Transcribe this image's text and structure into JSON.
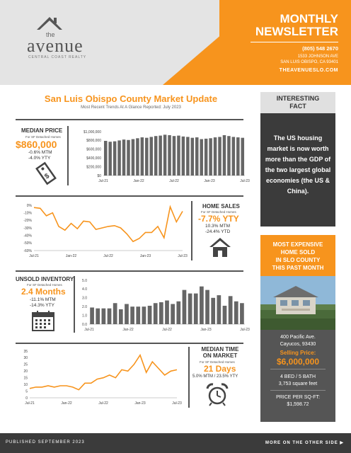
{
  "header": {
    "logo_the": "the",
    "logo_main": "avenue",
    "logo_sub": "CENTRAL COAST REALTY",
    "title_line1": "MONTHLY",
    "title_line2": "NEWSLETTER",
    "phone": "(805) 548 2670",
    "address_line1": "1533 JOHNSON AVE",
    "address_line2": "SAN LUIS OBISPO, CA 93401",
    "website": "THEAVENUESLO.COM"
  },
  "main": {
    "title": "San Luis Obispo County Market Update",
    "subtitle": "Most Recent Trends At A Glance Reported: July 2023"
  },
  "median_price": {
    "title": "MEDIAN PRICE",
    "sub": "For SF Detached Homes",
    "value": "$860,000",
    "mtm": "-0.6% MTM",
    "ytd": "-4.0% YTY"
  },
  "home_sales": {
    "title": "HOME SALES",
    "sub": "For SF Detached Homes",
    "value": "-7.7% YTY",
    "mtm": "10.3% MTM",
    "ytd": "-24.4% YTD"
  },
  "unsold": {
    "title": "UNSOLD INVENTORY",
    "sub": "For SF Detached Homes",
    "value": "2.4 Months",
    "mtm": "-11.1% MTM",
    "ytd": "-14.3% YTY"
  },
  "median_time": {
    "title_line1": "MEDIAN TIME",
    "title_line2": "ON MARKET",
    "sub": "For SF Detached Homes",
    "value": "21 Days",
    "change": "5.0% MTM / 23.5% YTY"
  },
  "fact": {
    "heading_line1": "INTERESTING",
    "heading_line2": "FACT",
    "text": "The US housing market is now worth more than the GDP of the two largest global economies (the US & China)."
  },
  "expensive": {
    "heading_line1": "MOST EXPENSIVE",
    "heading_line2": "HOME SOLD",
    "heading_line3": "IN SLO COUNTY",
    "heading_line4": "THIS PAST MONTH",
    "address_line1": "400 Pacific Ave.",
    "address_line2": "Cayucos, 93430",
    "selling_label": "Selling Price:",
    "selling_value": "$6,000,000",
    "bed_bath": "4 BED / 5 BATH",
    "sqft": "3,753 square feet",
    "ppsf_label": "PRICE PER SQ-FT:",
    "ppsf_value": "$1,598.72"
  },
  "footer": {
    "published": "PUBLISHED SEPTEMBER 2023",
    "more": "MORE ON THE OTHER SIDE ▶"
  },
  "colors": {
    "accent": "#f7941d",
    "dark": "#3b3b3b",
    "bar": "#666666"
  },
  "chart_data": [
    {
      "type": "bar",
      "name": "median-price",
      "x_ticks": [
        "Jul-21",
        "Jan-22",
        "Jul-22",
        "Jan-23",
        "Jul-23"
      ],
      "y_ticks": [
        "$0",
        "$200,000",
        "$400,000",
        "$600,000",
        "$800,000",
        "$1,000,000"
      ],
      "ylim": [
        0,
        1000000
      ],
      "values": [
        790000,
        770000,
        780000,
        800000,
        820000,
        810000,
        830000,
        850000,
        870000,
        860000,
        880000,
        900000,
        910000,
        930000,
        920000,
        900000,
        910000,
        890000,
        880000,
        860000,
        870000,
        830000,
        840000,
        850000,
        870000,
        880000,
        920000,
        900000,
        880000,
        870000,
        860000
      ]
    },
    {
      "type": "line",
      "name": "home-sales",
      "x_ticks": [
        "Jul-21",
        "Jan-22",
        "Jul-22",
        "Jan-23",
        "Jul-23"
      ],
      "y_ticks": [
        "0%",
        "-10%",
        "-20%",
        "-30%",
        "-40%",
        "-50%",
        "-60%"
      ],
      "ylim": [
        -60,
        0
      ],
      "values": [
        -3,
        -4,
        -14,
        -10,
        -28,
        -33,
        -24,
        -31,
        -21,
        -22,
        -32,
        -30,
        -28,
        -27,
        -30,
        -38,
        -48,
        -44,
        -36,
        -36,
        -28,
        -43,
        -2,
        -22,
        -8
      ]
    },
    {
      "type": "bar",
      "name": "unsold-inventory",
      "x_ticks": [
        "Jul-21",
        "Jan-22",
        "Jul-22",
        "Jan-23",
        "Jul-23"
      ],
      "y_ticks": [
        "0.0",
        "1.0",
        "2.0",
        "3.0",
        "4.0",
        "5.0"
      ],
      "ylim": [
        0,
        5
      ],
      "values": [
        1.9,
        1.8,
        1.8,
        1.8,
        2.4,
        1.7,
        2.3,
        2.0,
        2.0,
        2.0,
        2.1,
        2.4,
        2.5,
        2.7,
        2.3,
        2.6,
        3.9,
        3.5,
        3.5,
        4.3,
        3.9,
        3.0,
        3.3,
        2.1,
        3.2,
        2.6,
        2.4
      ]
    },
    {
      "type": "line",
      "name": "median-time",
      "x_ticks": [
        "Jul-21",
        "Jan-22",
        "Jul-22",
        "Jan-23",
        "Jul-23"
      ],
      "y_ticks": [
        "0",
        "5",
        "10",
        "15",
        "20",
        "25",
        "30",
        "35"
      ],
      "ylim": [
        0,
        35
      ],
      "values": [
        7,
        8,
        8,
        9,
        8,
        9,
        9,
        8,
        6,
        11,
        11,
        14,
        15,
        17,
        15,
        21,
        20,
        25,
        32,
        19,
        27,
        22,
        17,
        20,
        21
      ]
    }
  ]
}
